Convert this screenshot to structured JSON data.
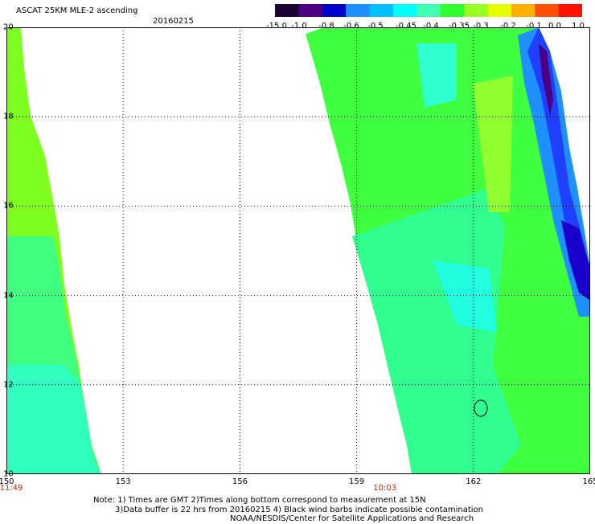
{
  "title": "ASCAT 25KM MLE-2 ascending",
  "date": "20160215",
  "colorbar": {
    "labels": [
      "-15.0",
      "-1.0",
      "-0.8",
      "-0.6",
      "-0.5",
      "-0.45",
      "-0.4",
      "-0.35",
      "-0.3",
      "-0.2",
      "-0.1",
      "0.0",
      "1.0"
    ],
    "colors": [
      "#1a0033",
      "#4b0082",
      "#0000cd",
      "#1e90ff",
      "#00bfff",
      "#00ffff",
      "#40ffb0",
      "#30ff30",
      "#9aff20",
      "#e6ff00",
      "#ffb000",
      "#ff5000",
      "#ff1000"
    ]
  },
  "map": {
    "x_ticks": [
      "150",
      "153",
      "156",
      "159",
      "162",
      "165"
    ],
    "y_ticks": [
      "20",
      "18",
      "16",
      "14",
      "12",
      "10"
    ],
    "lon_range": [
      150,
      165
    ],
    "lat_range": [
      10,
      20
    ],
    "grid": "dotted"
  },
  "swath_times": [
    {
      "label": "11:49",
      "lon": 150
    },
    {
      "label": "10:03",
      "lon": 159.6
    }
  ],
  "notes": [
    "Note: 1) Times are GMT 2)Times along bottom correspond to measurement at 15N",
    "3)Data buffer is 22 hrs from 20160215 4) Black wind barbs indicate possible contamination",
    "NOAA/NESDIS/Center for Satellite Applications and Research"
  ]
}
